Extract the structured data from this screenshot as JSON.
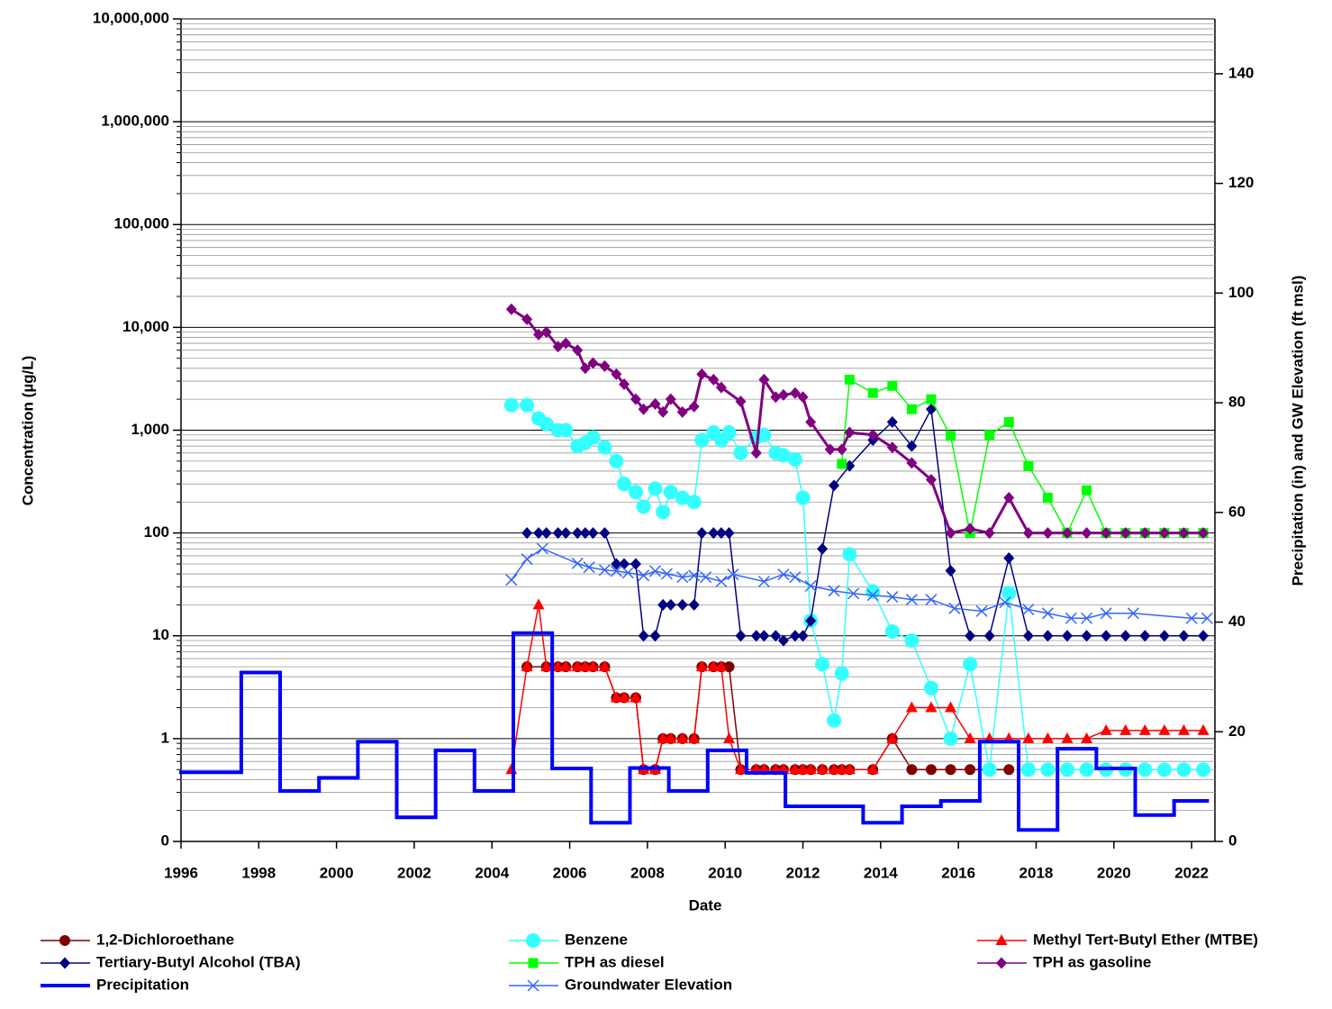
{
  "chart_data": {
    "type": "line",
    "x_label": "Date",
    "y_label": "Concentration (µg/L)",
    "y2_label": "Precipitation (in) and GW Elevation (ft msl)",
    "xlim": [
      1996,
      2022.6
    ],
    "xticks": [
      1996,
      1998,
      2000,
      2002,
      2004,
      2006,
      2008,
      2010,
      2012,
      2014,
      2016,
      2018,
      2020,
      2022
    ],
    "ylim": [
      0.1,
      10000000
    ],
    "log_y": true,
    "yticks": [
      {
        "value": 0.1,
        "label": "0"
      },
      1,
      10,
      100,
      {
        "value": 1000,
        "label": "1,000"
      },
      {
        "value": 10000,
        "label": "10,000"
      },
      {
        "value": 100000,
        "label": "100,000"
      },
      {
        "value": 1000000,
        "label": "1,000,000"
      },
      {
        "value": 10000000,
        "label": "10,000,000"
      }
    ],
    "y2lim": [
      0,
      150
    ],
    "y2ticks": [
      0,
      20,
      40,
      60,
      80,
      100,
      120,
      140
    ],
    "grid": true,
    "minor_grid": true,
    "legend": "bottom",
    "series": [
      {
        "name": "1,2-Dichloroethane",
        "color": "#800000",
        "marker": "circle",
        "x": [
          2004.9,
          2005.4,
          2005.7,
          2005.9,
          2006.2,
          2006.4,
          2006.6,
          2006.9,
          2007.2,
          2007.4,
          2007.7,
          2007.9,
          2008.2,
          2008.4,
          2008.6,
          2008.9,
          2009.2,
          2009.4,
          2009.7,
          2009.9,
          2010.1,
          2010.4,
          2010.8,
          2011.0,
          2011.3,
          2011.5,
          2011.8,
          2012.0,
          2012.2,
          2012.5,
          2012.8,
          2013.0,
          2013.2,
          2013.8,
          2014.3,
          2014.8,
          2015.3,
          2015.8,
          2016.3,
          2016.8,
          2017.3
        ],
        "values": [
          5,
          5,
          5,
          5,
          5,
          5,
          5,
          5,
          2.5,
          2.5,
          2.5,
          0.5,
          0.5,
          1,
          1,
          1,
          1,
          5,
          5,
          5,
          5,
          0.5,
          0.5,
          0.5,
          0.5,
          0.5,
          0.5,
          0.5,
          0.5,
          0.5,
          0.5,
          0.5,
          0.5,
          0.5,
          1,
          0.5,
          0.5,
          0.5,
          0.5,
          0.5,
          0.5
        ]
      },
      {
        "name": "Benzene",
        "color": "#33ffff",
        "marker": "big-circle",
        "x": [
          2004.5,
          2004.9,
          2005.2,
          2005.4,
          2005.7,
          2005.9,
          2006.2,
          2006.4,
          2006.6,
          2006.9,
          2007.2,
          2007.4,
          2007.7,
          2007.9,
          2008.2,
          2008.4,
          2008.6,
          2008.9,
          2009.2,
          2009.4,
          2009.7,
          2009.9,
          2010.1,
          2010.4,
          2010.8,
          2011.0,
          2011.3,
          2011.5,
          2011.8,
          2012.0,
          2012.2,
          2012.5,
          2012.8,
          2013.0,
          2013.2,
          2013.8,
          2014.3,
          2014.8,
          2015.3,
          2015.8,
          2016.3,
          2016.8,
          2017.3,
          2017.8,
          2018.3,
          2018.8,
          2019.3,
          2019.8,
          2020.3,
          2020.8,
          2021.3,
          2021.8,
          2022.3
        ],
        "values": [
          1750,
          1750,
          1300,
          1150,
          1000,
          1000,
          700,
          750,
          850,
          680,
          500,
          300,
          250,
          180,
          270,
          160,
          250,
          220,
          200,
          800,
          950,
          800,
          950,
          600,
          850,
          900,
          600,
          570,
          520,
          220,
          14,
          5.3,
          1.5,
          4.3,
          62,
          27,
          11,
          9,
          3.1,
          1,
          5.3,
          0.5,
          26,
          0.5,
          0.5,
          0.5,
          0.5,
          0.5,
          0.5,
          0.5,
          0.5,
          0.5,
          0.5
        ]
      },
      {
        "name": "Methyl Tert-Butyl Ether (MTBE)",
        "color": "#ff0000",
        "marker": "triangle",
        "x": [
          2004.5,
          2004.9,
          2005.2,
          2005.4,
          2005.7,
          2005.9,
          2006.2,
          2006.4,
          2006.6,
          2006.9,
          2007.2,
          2007.4,
          2007.7,
          2007.9,
          2008.2,
          2008.4,
          2008.6,
          2008.9,
          2009.2,
          2009.4,
          2009.7,
          2009.9,
          2010.1,
          2010.4,
          2010.8,
          2011.0,
          2011.3,
          2011.5,
          2011.8,
          2012.0,
          2012.2,
          2012.5,
          2012.8,
          2013.0,
          2013.2,
          2013.8,
          2014.3,
          2014.8,
          2015.3,
          2015.8,
          2016.3,
          2016.8,
          2017.3,
          2017.8,
          2018.3,
          2018.8,
          2019.3,
          2019.8,
          2020.3,
          2020.8,
          2021.3,
          2021.8,
          2022.3
        ],
        "values": [
          0.5,
          5,
          20,
          5,
          5,
          5,
          5,
          5,
          5,
          5,
          2.5,
          2.5,
          2.5,
          0.5,
          0.5,
          1,
          1,
          1,
          1,
          5,
          5,
          5,
          1,
          0.5,
          0.5,
          0.5,
          0.5,
          0.5,
          0.5,
          0.5,
          0.5,
          0.5,
          0.5,
          0.5,
          0.5,
          0.5,
          1,
          2,
          2,
          2,
          1,
          1,
          1,
          1,
          1,
          1,
          1,
          1.2,
          1.2,
          1.2,
          1.2,
          1.2,
          1.2
        ]
      },
      {
        "name": "Tertiary-Butyl Alcohol (TBA)",
        "color": "#000080",
        "marker": "diamond",
        "x": [
          2004.9,
          2005.2,
          2005.4,
          2005.7,
          2005.9,
          2006.2,
          2006.4,
          2006.6,
          2006.9,
          2007.2,
          2007.4,
          2007.7,
          2007.9,
          2008.2,
          2008.4,
          2008.6,
          2008.9,
          2009.2,
          2009.4,
          2009.7,
          2009.9,
          2010.1,
          2010.4,
          2010.8,
          2011.0,
          2011.3,
          2011.5,
          2011.8,
          2012.0,
          2012.2,
          2012.5,
          2012.8,
          2013.2,
          2013.8,
          2014.3,
          2014.8,
          2015.3,
          2015.8,
          2016.3,
          2016.8,
          2017.3,
          2017.8,
          2018.3,
          2018.8,
          2019.3,
          2019.8,
          2020.3,
          2020.8,
          2021.3,
          2021.8,
          2022.3
        ],
        "values": [
          100,
          100,
          100,
          100,
          100,
          100,
          100,
          100,
          100,
          50,
          50,
          50,
          10,
          10,
          20,
          20,
          20,
          20,
          100,
          100,
          100,
          100,
          10,
          10,
          10,
          10,
          9,
          10,
          10,
          14,
          70,
          290,
          450,
          800,
          1200,
          700,
          1600,
          43,
          10,
          10,
          57,
          10,
          10,
          10,
          10,
          10,
          10,
          10,
          10,
          10,
          10
        ]
      },
      {
        "name": "TPH as diesel",
        "color": "#00ff00",
        "marker": "square",
        "x": [
          2013.0,
          2013.2,
          2013.8,
          2014.3,
          2014.8,
          2015.3,
          2015.8,
          2016.3,
          2016.8,
          2017.3,
          2017.8,
          2018.3,
          2018.8,
          2019.3,
          2019.8,
          2020.3,
          2020.8,
          2021.3,
          2021.8,
          2022.3
        ],
        "values": [
          470,
          3100,
          2300,
          2700,
          1600,
          2000,
          880,
          100,
          900,
          1200,
          450,
          220,
          100,
          260,
          100,
          100,
          100,
          100,
          100,
          100
        ]
      },
      {
        "name": "TPH as gasoline",
        "color": "#800080",
        "marker": "diamond",
        "x": [
          2004.5,
          2004.9,
          2005.2,
          2005.4,
          2005.7,
          2005.9,
          2006.2,
          2006.4,
          2006.6,
          2006.9,
          2007.2,
          2007.4,
          2007.7,
          2007.9,
          2008.2,
          2008.4,
          2008.6,
          2008.9,
          2009.2,
          2009.4,
          2009.7,
          2009.9,
          2010.4,
          2010.8,
          2011.0,
          2011.3,
          2011.5,
          2011.8,
          2012.0,
          2012.2,
          2012.7,
          2013.0,
          2013.2,
          2013.8,
          2014.3,
          2014.8,
          2015.3,
          2015.8,
          2016.3,
          2016.8,
          2017.3,
          2017.8,
          2018.3,
          2018.8,
          2019.3,
          2019.8,
          2020.3,
          2020.8,
          2021.3,
          2021.8,
          2022.3
        ],
        "values": [
          15000,
          12000,
          8500,
          9000,
          6500,
          7000,
          6000,
          4000,
          4500,
          4200,
          3500,
          2800,
          2000,
          1600,
          1800,
          1500,
          2000,
          1500,
          1700,
          3500,
          3100,
          2600,
          1900,
          600,
          3100,
          2100,
          2200,
          2300,
          2100,
          1200,
          650,
          650,
          950,
          900,
          680,
          480,
          330,
          100,
          110,
          100,
          220,
          100,
          100,
          100,
          100,
          100,
          100,
          100,
          100,
          100,
          100
        ]
      },
      {
        "name": "Precipitation",
        "color": "#0000ff",
        "marker": "step",
        "axis": "y2",
        "bins": [
          1996,
          1997.55,
          1998.55,
          1999.55,
          2000.55,
          2001.55,
          2002.55,
          2003.55,
          2004.55,
          2005.55,
          2006.55,
          2007.55,
          2008.55,
          2009.55,
          2010.55,
          2011.55,
          2012.55,
          2013.55,
          2014.55,
          2015.55,
          2016.55,
          2017.55,
          2018.55,
          2019.55,
          2020.55,
          2021.55,
          2022.4
        ],
        "values": [
          12.6,
          30.8,
          9.2,
          11.6,
          18.2,
          4.4,
          16.6,
          9.2,
          38,
          13.3,
          3.4,
          13.4,
          9.2,
          16.6,
          12.5,
          6.4,
          6.4,
          3.4,
          6.4,
          7.4,
          18.2,
          2.1,
          16.9,
          13.3,
          4.8,
          7.4
        ]
      },
      {
        "name": "Groundwater Elevation",
        "color": "#3366ff",
        "marker": "x",
        "axis": "y2",
        "x": [
          2004.5,
          2004.9,
          2005.3,
          2006.2,
          2006.5,
          2006.9,
          2007.2,
          2007.5,
          2007.9,
          2008.2,
          2008.5,
          2008.9,
          2009.2,
          2009.5,
          2009.9,
          2010.2,
          2011.0,
          2011.5,
          2011.8,
          2012.2,
          2012.8,
          2013.3,
          2013.8,
          2014.3,
          2014.8,
          2015.3,
          2015.9,
          2016.6,
          2017.2,
          2017.8,
          2018.3,
          2018.9,
          2019.3,
          2019.8,
          2020.5,
          2022.0,
          2022.4
        ],
        "values": [
          47.7,
          51.5,
          53.4,
          50.7,
          50,
          49.5,
          49.3,
          49,
          48.5,
          49.3,
          48.8,
          48.2,
          48.5,
          48.2,
          47.4,
          48.7,
          47.4,
          48.7,
          48.2,
          46.6,
          45.7,
          45.2,
          44.9,
          44.6,
          44.1,
          44.1,
          42.5,
          42,
          43.6,
          42.3,
          41.6,
          40.7,
          40.7,
          41.6,
          41.6,
          40.7,
          40.7
        ]
      }
    ]
  }
}
